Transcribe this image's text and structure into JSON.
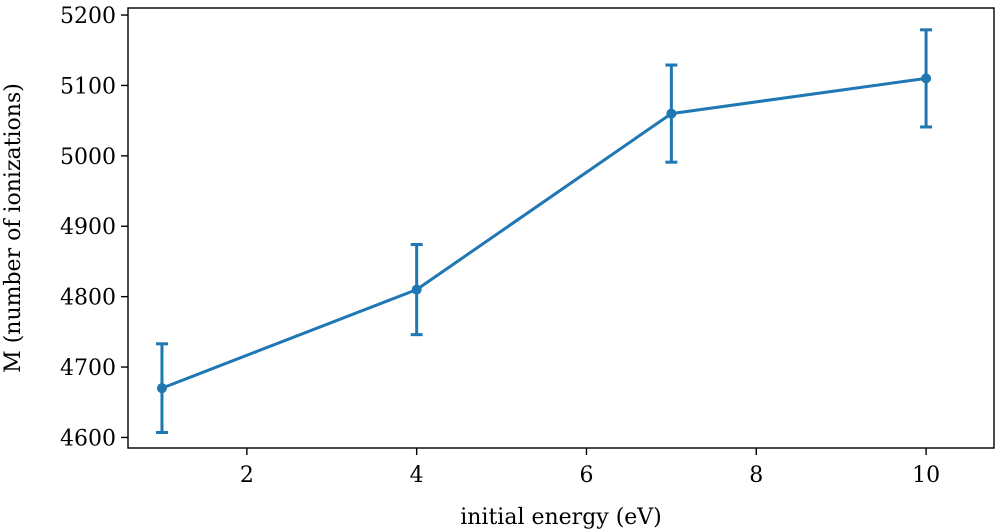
{
  "chart_data": {
    "type": "line",
    "title": "",
    "xlabel": "initial energy (eV)",
    "ylabel": "M (number of ionizations)",
    "xlim": [
      0.6,
      10.8
    ],
    "ylim": [
      4585,
      5210
    ],
    "xticks": [
      2,
      4,
      6,
      8,
      10
    ],
    "yticks": [
      4600,
      4700,
      4800,
      4900,
      5000,
      5100,
      5200
    ],
    "grid": false,
    "series": [
      {
        "name": "M",
        "color": "#1f77b4",
        "x": [
          1,
          4,
          7,
          10
        ],
        "y": [
          4670,
          4810,
          5060,
          5110
        ],
        "yerr": [
          63,
          64,
          69,
          69
        ]
      }
    ]
  }
}
